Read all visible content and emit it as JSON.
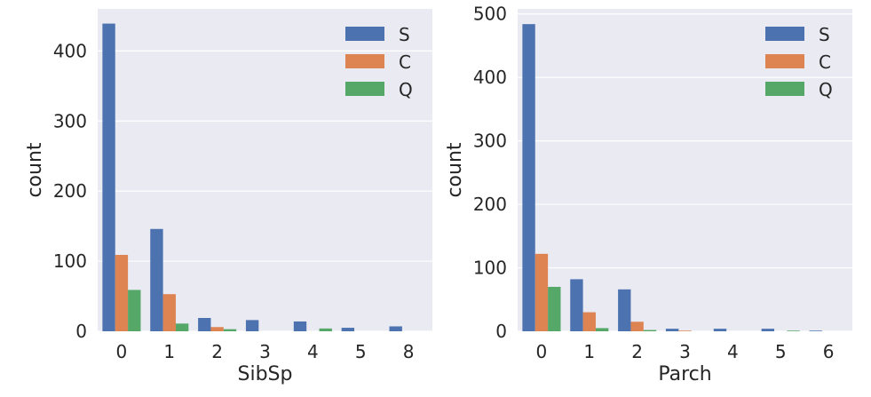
{
  "chart_data": [
    {
      "type": "bar",
      "xlabel": "SibSp",
      "ylabel": "count",
      "categories": [
        "0",
        "1",
        "2",
        "3",
        "4",
        "5",
        "8"
      ],
      "series": [
        {
          "name": "S",
          "color": "#4c72b0",
          "values": [
            439,
            146,
            19,
            16,
            14,
            5,
            7
          ]
        },
        {
          "name": "C",
          "color": "#dd8452",
          "values": [
            109,
            53,
            6,
            0,
            0,
            0,
            0
          ]
        },
        {
          "name": "Q",
          "color": "#55a868",
          "values": [
            59,
            11,
            3,
            0,
            4,
            0,
            0
          ]
        }
      ],
      "yticks": [
        0,
        100,
        200,
        300,
        400
      ],
      "ylim": [
        0,
        460
      ],
      "grid": true,
      "legend": "top-right"
    },
    {
      "type": "bar",
      "xlabel": "Parch",
      "ylabel": "count",
      "categories": [
        "0",
        "1",
        "2",
        "3",
        "4",
        "5",
        "6"
      ],
      "series": [
        {
          "name": "S",
          "color": "#4c72b0",
          "values": [
            484,
            82,
            66,
            4,
            4,
            4,
            1
          ]
        },
        {
          "name": "C",
          "color": "#dd8452",
          "values": [
            122,
            30,
            15,
            1,
            0,
            0,
            0
          ]
        },
        {
          "name": "Q",
          "color": "#55a868",
          "values": [
            70,
            5,
            2,
            0,
            0,
            1,
            0
          ]
        }
      ],
      "yticks": [
        0,
        100,
        200,
        300,
        400,
        500
      ],
      "ylim": [
        0,
        508
      ],
      "grid": true,
      "legend": "top-right"
    }
  ]
}
